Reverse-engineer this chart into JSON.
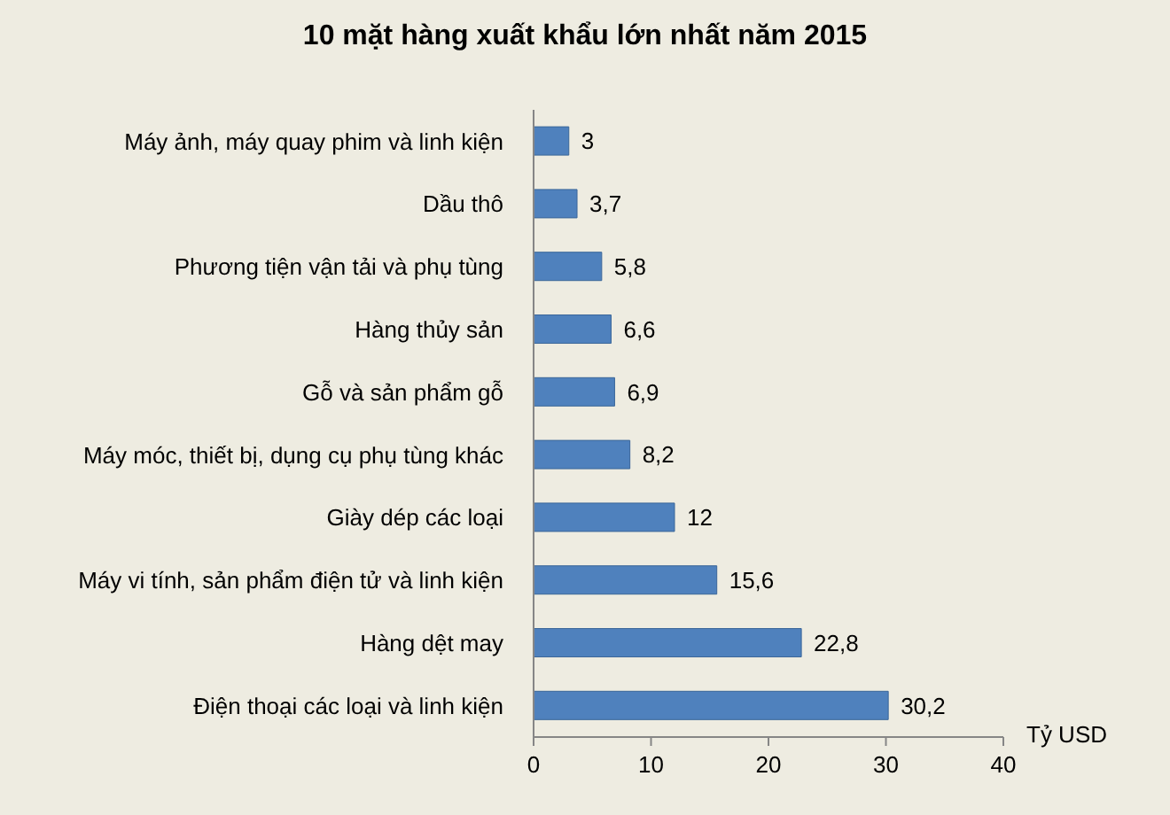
{
  "chart_data": {
    "type": "bar",
    "orientation": "horizontal",
    "title": "10 mặt hàng xuất khẩu lớn nhất năm 2015",
    "xlabel": "Tỷ USD",
    "categories": [
      "Máy ảnh, máy quay phim và linh kiện",
      "Dầu thô",
      "Phương tiện vận tải và phụ tùng",
      "Hàng thủy sản",
      "Gỗ và sản phẩm gỗ",
      "Máy móc, thiết bị, dụng cụ phụ tùng khác",
      "Giày dép các loại",
      "Máy vi tính, sản phẩm điện tử và linh kiện",
      "Hàng dệt may",
      "Điện thoại các loại và linh kiện"
    ],
    "values": [
      3,
      3.7,
      5.8,
      6.6,
      6.9,
      8.2,
      12,
      15.6,
      22.8,
      30.2
    ],
    "value_labels": [
      "3",
      "3,7",
      "5,8",
      "6,6",
      "6,9",
      "8,2",
      "12",
      "15,6",
      "22,8",
      "30,2"
    ],
    "color": "#4f81bd",
    "xlim": [
      0,
      40
    ],
    "xticks": [
      0,
      10,
      20,
      30,
      40
    ]
  }
}
